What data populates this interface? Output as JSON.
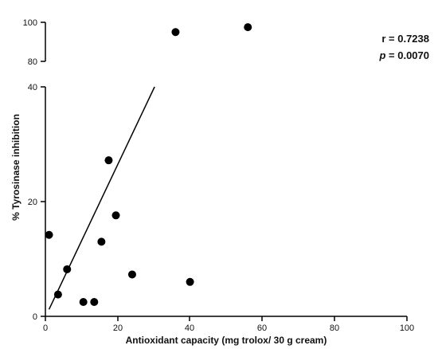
{
  "chart_data": {
    "type": "scatter",
    "xlabel": "Antioxidant capacity (mg trolox/ 30 g cream)",
    "ylabel": "% Tyrosinase inhibition",
    "xlim": [
      0,
      100
    ],
    "x_ticks": [
      "0",
      "20",
      "40",
      "60",
      "80",
      "100"
    ],
    "y_axis_segments": [
      {
        "ylim": [
          0,
          40
        ],
        "ticks": [
          "0",
          "20",
          "40"
        ]
      },
      {
        "ylim": [
          80,
          100
        ],
        "ticks": [
          "80",
          "100"
        ]
      }
    ],
    "broken_y_axis": true,
    "grid": false,
    "points": [
      {
        "x": 1,
        "y": 14.2
      },
      {
        "x": 3.5,
        "y": 3.8
      },
      {
        "x": 6,
        "y": 8.2
      },
      {
        "x": 10.5,
        "y": 2.5
      },
      {
        "x": 13.5,
        "y": 2.5
      },
      {
        "x": 15.5,
        "y": 13
      },
      {
        "x": 17.5,
        "y": 27.2
      },
      {
        "x": 19.5,
        "y": 17.6
      },
      {
        "x": 24,
        "y": 7.3
      },
      {
        "x": 36,
        "y": 95
      },
      {
        "x": 40,
        "y": 6
      },
      {
        "x": 56,
        "y": 97.5
      }
    ],
    "trendline": {
      "x": [
        1,
        30.2
      ],
      "y": [
        1.2,
        40
      ]
    },
    "annotations": {
      "r_line": "r = 0.7238",
      "p_symbol": "p",
      "p_value": " = 0.0070"
    }
  }
}
